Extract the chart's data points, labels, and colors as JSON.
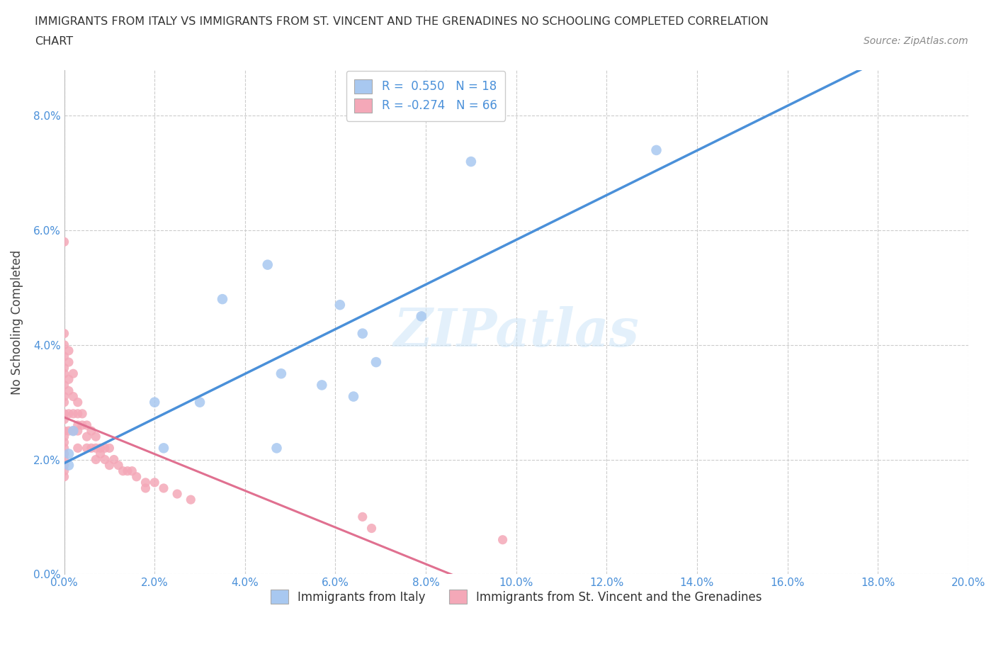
{
  "title_line1": "IMMIGRANTS FROM ITALY VS IMMIGRANTS FROM ST. VINCENT AND THE GRENADINES NO SCHOOLING COMPLETED CORRELATION",
  "title_line2": "CHART",
  "source_text": "Source: ZipAtlas.com",
  "italy_x": [
    0.001,
    0.001,
    0.002,
    0.02,
    0.022,
    0.03,
    0.035,
    0.045,
    0.047,
    0.048,
    0.057,
    0.061,
    0.064,
    0.066,
    0.069,
    0.079,
    0.09,
    0.131
  ],
  "italy_y": [
    0.019,
    0.021,
    0.025,
    0.03,
    0.022,
    0.03,
    0.048,
    0.054,
    0.022,
    0.035,
    0.033,
    0.047,
    0.031,
    0.042,
    0.037,
    0.045,
    0.072,
    0.074
  ],
  "stvincent_x": [
    0.0,
    0.0,
    0.0,
    0.0,
    0.0,
    0.0,
    0.0,
    0.0,
    0.0,
    0.0,
    0.0,
    0.0,
    0.0,
    0.0,
    0.0,
    0.0,
    0.0,
    0.0,
    0.0,
    0.0,
    0.001,
    0.001,
    0.001,
    0.001,
    0.001,
    0.001,
    0.002,
    0.002,
    0.002,
    0.002,
    0.003,
    0.003,
    0.003,
    0.003,
    0.003,
    0.004,
    0.004,
    0.005,
    0.005,
    0.005,
    0.006,
    0.006,
    0.007,
    0.007,
    0.007,
    0.008,
    0.008,
    0.009,
    0.009,
    0.01,
    0.01,
    0.011,
    0.012,
    0.013,
    0.014,
    0.015,
    0.016,
    0.018,
    0.018,
    0.02,
    0.022,
    0.025,
    0.028,
    0.066,
    0.068,
    0.097
  ],
  "stvincent_y": [
    0.058,
    0.042,
    0.04,
    0.038,
    0.036,
    0.035,
    0.033,
    0.031,
    0.03,
    0.028,
    0.027,
    0.025,
    0.024,
    0.023,
    0.022,
    0.021,
    0.02,
    0.019,
    0.018,
    0.017,
    0.039,
    0.037,
    0.034,
    0.032,
    0.028,
    0.025,
    0.035,
    0.031,
    0.028,
    0.025,
    0.03,
    0.028,
    0.026,
    0.025,
    0.022,
    0.028,
    0.026,
    0.026,
    0.024,
    0.022,
    0.025,
    0.022,
    0.024,
    0.022,
    0.02,
    0.022,
    0.021,
    0.022,
    0.02,
    0.022,
    0.019,
    0.02,
    0.019,
    0.018,
    0.018,
    0.018,
    0.017,
    0.016,
    0.015,
    0.016,
    0.015,
    0.014,
    0.013,
    0.01,
    0.008,
    0.006
  ],
  "italy_R": "0.550",
  "italy_N": "18",
  "stvincent_R": "-0.274",
  "stvincent_N": "66",
  "italy_color": "#a8c8f0",
  "stvincent_color": "#f4a8b8",
  "italy_line_color": "#4a90d9",
  "stvincent_line_color": "#e07090",
  "xlim": [
    0.0,
    0.2
  ],
  "ylim": [
    0.0,
    0.088
  ],
  "xticks": [
    0.0,
    0.02,
    0.04,
    0.06,
    0.08,
    0.1,
    0.12,
    0.14,
    0.16,
    0.18,
    0.2
  ],
  "yticks": [
    0.0,
    0.02,
    0.04,
    0.06,
    0.08
  ],
  "tick_color": "#4a90d9",
  "ylabel": "No Schooling Completed",
  "watermark": "ZIPatlas",
  "background_color": "#ffffff",
  "grid_color": "#cccccc",
  "legend_italy_label": "Immigrants from Italy",
  "legend_stvincent_label": "Immigrants from St. Vincent and the Grenadines",
  "italy_line_m": 0.2375,
  "italy_line_b": 0.018,
  "sv_line_m": -0.155,
  "sv_line_b": 0.025
}
